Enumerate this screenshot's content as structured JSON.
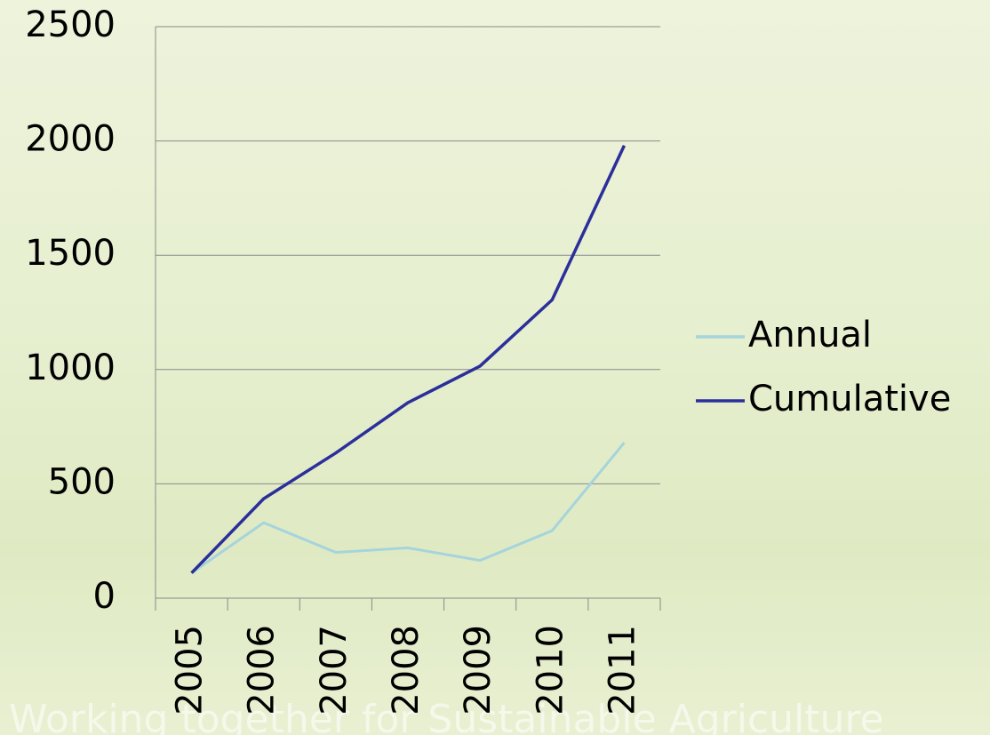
{
  "chart_data": {
    "type": "line",
    "categories": [
      "2005",
      "2006",
      "2007",
      "2008",
      "2009",
      "2010",
      "2011"
    ],
    "series": [
      {
        "name": "Annual",
        "color": "#a6d4dc",
        "values": [
          110,
          330,
          200,
          220,
          165,
          295,
          680
        ]
      },
      {
        "name": "Cumulative",
        "color": "#2b2f9b",
        "values": [
          110,
          435,
          635,
          855,
          1015,
          1305,
          1980
        ]
      }
    ],
    "ylim": [
      0,
      2500
    ],
    "yticks": [
      0,
      500,
      1000,
      1500,
      2000,
      2500
    ],
    "grid": true,
    "legend": "right",
    "footer": "Working together for Sustainable Agriculture"
  }
}
